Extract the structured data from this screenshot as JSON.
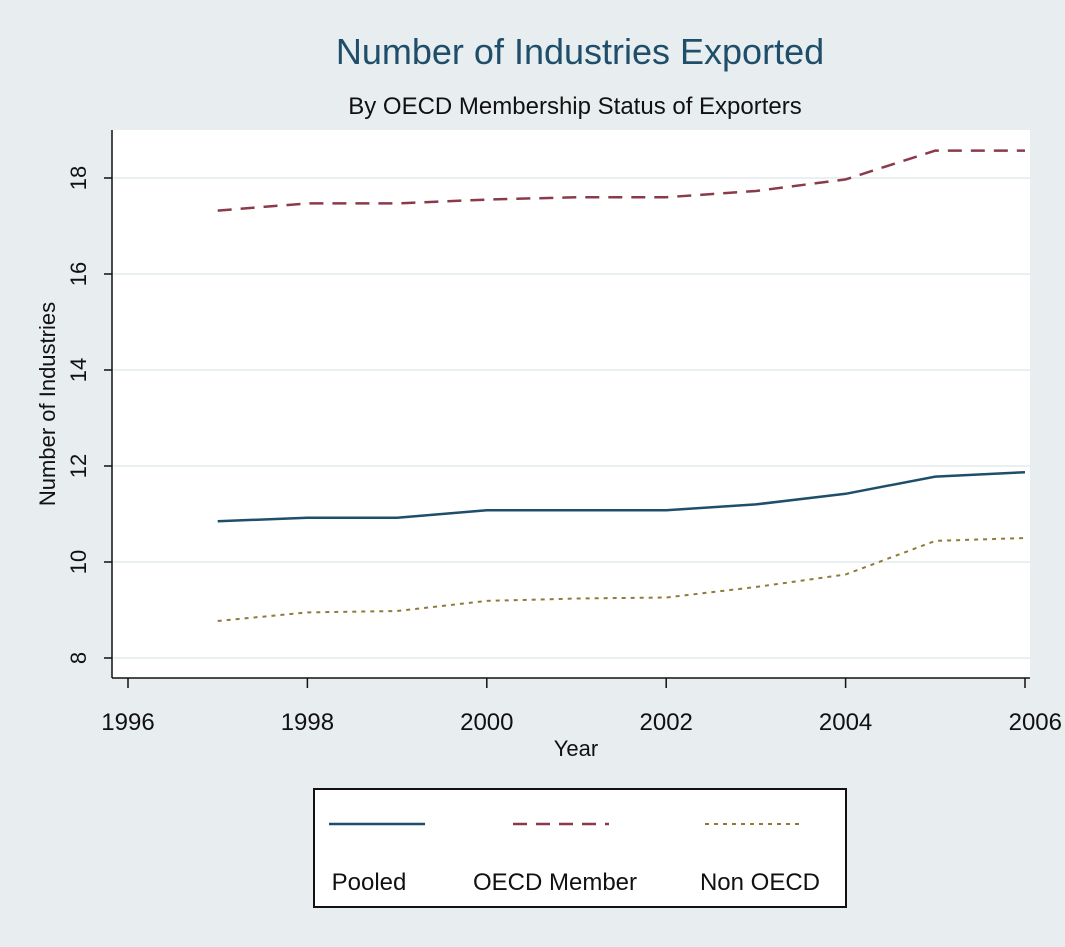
{
  "chart_data": {
    "type": "line",
    "title": "Number of Industries Exported",
    "subtitle": "By OECD Membership Status of Exporters",
    "xlabel": "Year",
    "ylabel": "Number of Industries",
    "xlim": [
      1996,
      2006
    ],
    "ylim": [
      8,
      18
    ],
    "x_ticks": [
      1996,
      1998,
      2000,
      2002,
      2004,
      2006
    ],
    "y_ticks": [
      8,
      10,
      12,
      14,
      16,
      18
    ],
    "x_tick_labels": [
      "1996",
      "1998",
      "2000",
      "2002",
      "2004",
      "2006"
    ],
    "y_tick_labels": [
      "8",
      "10",
      "12",
      "14",
      "16",
      "18"
    ],
    "grid": true,
    "legend_position": "bottom",
    "x": [
      1997,
      1998,
      1999,
      2000,
      2001,
      2002,
      2003,
      2004,
      2005,
      2006
    ],
    "series": [
      {
        "name": "Pooled",
        "values": [
          10.85,
          10.92,
          10.92,
          11.08,
          11.08,
          11.08,
          11.2,
          11.42,
          11.78,
          11.87
        ],
        "color": "#1f4e6b",
        "style": "solid"
      },
      {
        "name": "OECD Member",
        "values": [
          17.32,
          17.47,
          17.47,
          17.55,
          17.6,
          17.6,
          17.73,
          17.97,
          18.57,
          18.57
        ],
        "color": "#8b3a4a",
        "style": "dashed"
      },
      {
        "name": "Non OECD",
        "values": [
          8.77,
          8.95,
          8.98,
          9.19,
          9.24,
          9.26,
          9.48,
          9.74,
          10.44,
          10.5
        ],
        "color": "#8f7a3a",
        "style": "dotted"
      }
    ]
  }
}
